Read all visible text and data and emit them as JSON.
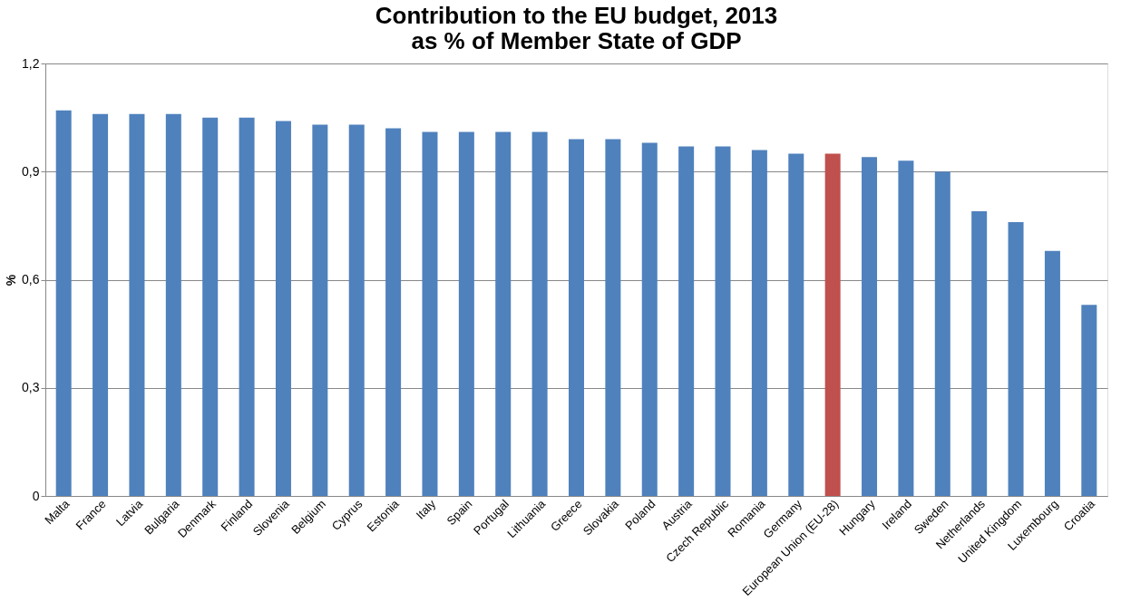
{
  "chart_data": {
    "type": "bar",
    "title": "Contribution to the EU budget, 2013\nas % of Member State of GDP",
    "ylabel": "%",
    "categories": [
      "Malta",
      "France",
      "Latvia",
      "Bulgaria",
      "Denmark",
      "Finland",
      "Slovenia",
      "Belgium",
      "Cyprus",
      "Estonia",
      "Italy",
      "Spain",
      "Portugal",
      "Lithuania",
      "Greece",
      "Slovakia",
      "Poland",
      "Austria",
      "Czech Republic",
      "Romania",
      "Germany",
      "European Union (EU-28)",
      "Hungary",
      "Ireland",
      "Sweden",
      "Netherlands",
      "United Kingdom",
      "Luxembourg",
      "Croatia"
    ],
    "values": [
      1.07,
      1.06,
      1.06,
      1.06,
      1.05,
      1.05,
      1.04,
      1.03,
      1.03,
      1.02,
      1.01,
      1.01,
      1.01,
      1.01,
      0.99,
      0.99,
      0.98,
      0.97,
      0.97,
      0.96,
      0.95,
      0.95,
      0.94,
      0.93,
      0.9,
      0.79,
      0.76,
      0.68,
      0.53
    ],
    "colors": [
      "#4f81bd",
      "#4f81bd",
      "#4f81bd",
      "#4f81bd",
      "#4f81bd",
      "#4f81bd",
      "#4f81bd",
      "#4f81bd",
      "#4f81bd",
      "#4f81bd",
      "#4f81bd",
      "#4f81bd",
      "#4f81bd",
      "#4f81bd",
      "#4f81bd",
      "#4f81bd",
      "#4f81bd",
      "#4f81bd",
      "#4f81bd",
      "#4f81bd",
      "#4f81bd",
      "#c0504d",
      "#4f81bd",
      "#4f81bd",
      "#4f81bd",
      "#4f81bd",
      "#4f81bd",
      "#4f81bd",
      "#4f81bd"
    ],
    "ylim": [
      0,
      1.2
    ],
    "yticks": [
      0,
      {
        "value": 0.3,
        "label": "0,3"
      },
      {
        "value": 0.6,
        "label": "0,6"
      },
      {
        "value": 0.9,
        "label": "0,9"
      },
      {
        "value": 1.2,
        "label": "1,2"
      }
    ],
    "grid": "y"
  }
}
